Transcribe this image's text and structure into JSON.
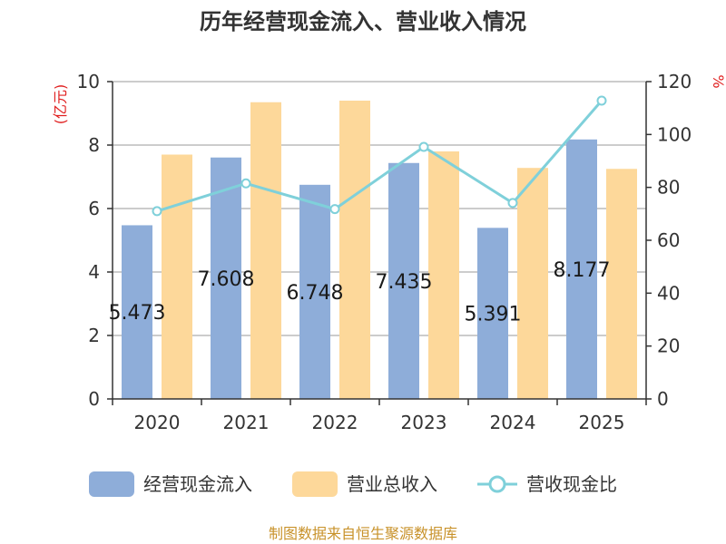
{
  "title": "历年经营现金流入、营业收入情况",
  "source": "制图数据来自恒生聚源数据库",
  "colors": {
    "cash": "#8eadd9",
    "revenue": "#fdd89a",
    "ratio": "#7fd0da",
    "unit": "#e02020",
    "axis": "#333333",
    "source": "#c8922a"
  },
  "chart_data": {
    "type": "bar",
    "title": "历年经营现金流入、营业收入情况",
    "categories": [
      "2020",
      "2021",
      "2022",
      "2023",
      "2024",
      "2025"
    ],
    "series": [
      {
        "name": "经营现金流入",
        "type": "bar",
        "axis": "left",
        "values": [
          5.473,
          7.608,
          6.748,
          7.435,
          5.391,
          8.177
        ],
        "labels": [
          "5.473",
          "7.608",
          "6.748",
          "7.435",
          "5.391",
          "8.177"
        ]
      },
      {
        "name": "营业总收入",
        "type": "bar",
        "axis": "left",
        "values": [
          7.7,
          9.35,
          9.4,
          7.8,
          7.28,
          7.25
        ]
      },
      {
        "name": "营收现金比",
        "type": "line",
        "axis": "right",
        "values": [
          71,
          81.5,
          71.8,
          95.3,
          74.1,
          112.8
        ]
      }
    ],
    "left_axis": {
      "unit": "(亿元)",
      "ylim": [
        0,
        10
      ],
      "ticks": [
        "0",
        "2",
        "4",
        "6",
        "8",
        "10"
      ]
    },
    "right_axis": {
      "unit": "%",
      "ylim": [
        0,
        120
      ],
      "ticks": [
        "0",
        "20",
        "40",
        "60",
        "80",
        "100",
        "120"
      ]
    },
    "grid": true,
    "legend_position": "bottom"
  }
}
